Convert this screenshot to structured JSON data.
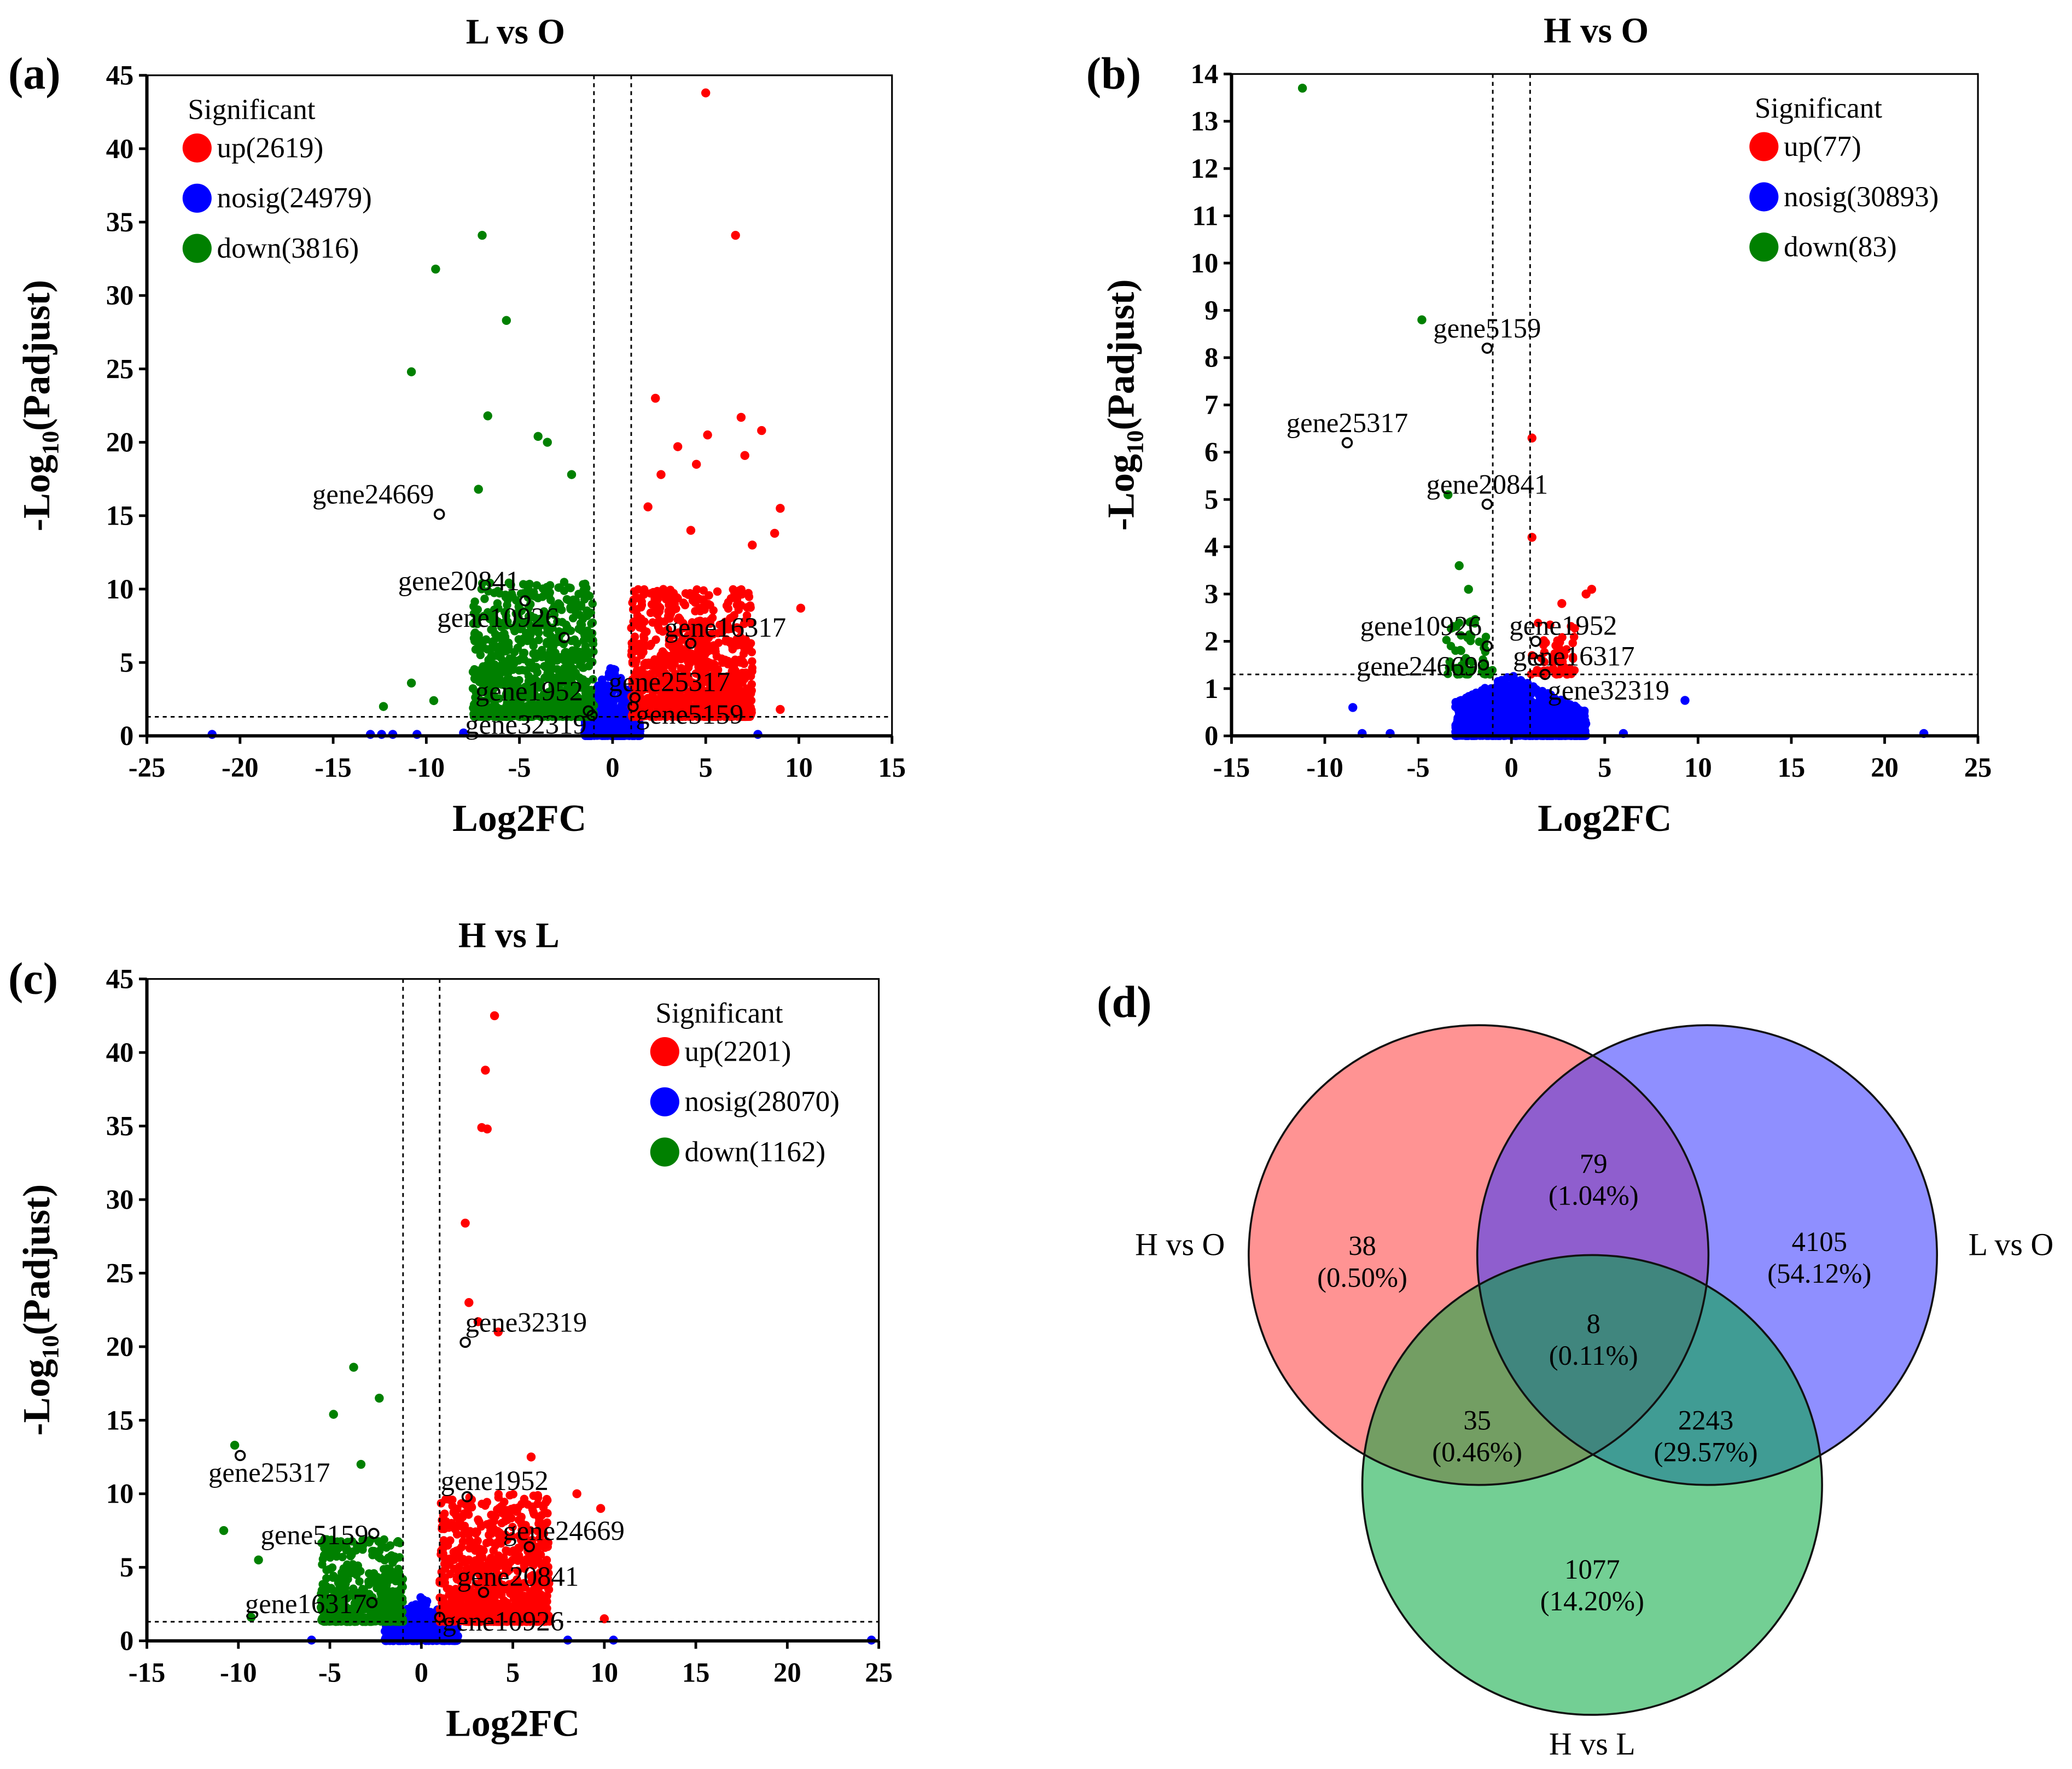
{
  "colors": {
    "up": "#ff0000",
    "nosig": "#0000ff",
    "down": "#008000",
    "venn_a": "#ff3b3b",
    "venn_b": "#3333ff",
    "venn_c": "#00a83c"
  },
  "chart_data": [
    {
      "type": "scatter",
      "panel": "(a)",
      "title": "L vs O",
      "xlabel": "Log2FC",
      "ylabel": "-Log10(Padjust)",
      "xlim": [
        -25,
        15
      ],
      "ylim": [
        0,
        45
      ],
      "xticks": [
        -25,
        -20,
        -15,
        -10,
        -5,
        0,
        5,
        10,
        15
      ],
      "yticks": [
        0,
        5,
        10,
        15,
        20,
        25,
        30,
        35,
        40,
        45
      ],
      "fc_threshold": 1,
      "p_threshold": 1.3,
      "legend_title": "Significant",
      "legend_position": "top-left",
      "legend": [
        {
          "key": "up",
          "label": "up(2619)"
        },
        {
          "key": "nosig",
          "label": "nosig(24979)"
        },
        {
          "key": "down",
          "label": "down(3816)"
        }
      ],
      "clouds": {
        "up": {
          "x": [
            1,
            7.5
          ],
          "y": [
            1.3,
            10
          ],
          "n": 900
        },
        "down": {
          "x": [
            -7.5,
            -1
          ],
          "y": [
            1.3,
            10.5
          ],
          "n": 900
        },
        "nosig": {
          "x": [
            -1.5,
            1.5
          ],
          "y": [
            0,
            5
          ],
          "n": 500
        }
      },
      "outliers": [
        [
          "up",
          5,
          43.8
        ],
        [
          "up",
          6.6,
          34.1
        ],
        [
          "up",
          2.3,
          23
        ],
        [
          "up",
          6.9,
          21.7
        ],
        [
          "up",
          8,
          20.8
        ],
        [
          "up",
          5.1,
          20.5
        ],
        [
          "up",
          7.1,
          19.1
        ],
        [
          "up",
          3.5,
          19.7
        ],
        [
          "up",
          4.5,
          18.5
        ],
        [
          "up",
          2.6,
          17.8
        ],
        [
          "up",
          9,
          15.5
        ],
        [
          "up",
          1.9,
          15.6
        ],
        [
          "up",
          4.2,
          14
        ],
        [
          "up",
          8.7,
          13.8
        ],
        [
          "up",
          7.5,
          13
        ],
        [
          "up",
          10.1,
          8.7
        ],
        [
          "up",
          9,
          1.8
        ],
        [
          "down",
          -7,
          34.1
        ],
        [
          "down",
          -9.5,
          31.8
        ],
        [
          "down",
          -5.7,
          28.3
        ],
        [
          "down",
          -10.8,
          24.8
        ],
        [
          "down",
          -6.7,
          21.8
        ],
        [
          "down",
          -4,
          20.4
        ],
        [
          "down",
          -3.5,
          20
        ],
        [
          "down",
          -2.2,
          17.8
        ],
        [
          "down",
          -7.2,
          16.8
        ],
        [
          "down",
          -12.3,
          2
        ],
        [
          "down",
          -10.8,
          3.6
        ],
        [
          "down",
          -9.6,
          2.4
        ],
        [
          "nosig",
          -21.5,
          0.1
        ],
        [
          "nosig",
          -13,
          0.1
        ],
        [
          "nosig",
          -12.4,
          0.1
        ],
        [
          "nosig",
          -11.8,
          0.1
        ],
        [
          "nosig",
          -10.5,
          0.1
        ],
        [
          "nosig",
          -8,
          0.2
        ],
        [
          "nosig",
          7.8,
          0.1
        ]
      ],
      "genes": [
        {
          "name": "gene24669",
          "x": -9.3,
          "y": 15.1,
          "side": "left"
        },
        {
          "name": "gene20841",
          "x": -4.7,
          "y": 9.2,
          "side": "left"
        },
        {
          "name": "gene10926",
          "x": -2.6,
          "y": 6.7,
          "side": "left"
        },
        {
          "name": "gene16317",
          "x": 4.2,
          "y": 6.3,
          "side": "right"
        },
        {
          "name": "gene25317",
          "x": 1.2,
          "y": 2.6,
          "side": "right"
        },
        {
          "name": "gene1952",
          "x": -1.3,
          "y": 1.7,
          "side": "left"
        },
        {
          "name": "gene32319",
          "x": -1.1,
          "y": 1.4,
          "side": "leftlow"
        },
        {
          "name": "gene5159",
          "x": 1.1,
          "y": 2.0,
          "side": "rightlow"
        }
      ]
    },
    {
      "type": "scatter",
      "panel": "(b)",
      "title": "H vs O",
      "xlabel": "Log2FC",
      "ylabel": "-Log10(Padjust)",
      "xlim": [
        -15,
        25
      ],
      "ylim": [
        0,
        14
      ],
      "xticks": [
        -15,
        -10,
        -5,
        0,
        5,
        10,
        15,
        20,
        25
      ],
      "yticks": [
        0,
        1,
        2,
        3,
        4,
        5,
        6,
        7,
        8,
        9,
        10,
        11,
        12,
        13,
        14
      ],
      "fc_threshold": 1,
      "p_threshold": 1.3,
      "legend_title": "Significant",
      "legend_position": "top-right",
      "legend": [
        {
          "key": "up",
          "label": "up(77)"
        },
        {
          "key": "nosig",
          "label": "nosig(30893)"
        },
        {
          "key": "down",
          "label": "down(83)"
        }
      ],
      "clouds": {
        "up": {
          "x": [
            1,
            3.5
          ],
          "y": [
            1.3,
            2.4
          ],
          "n": 60
        },
        "down": {
          "x": [
            -3.5,
            -1
          ],
          "y": [
            1.3,
            2.5
          ],
          "n": 60
        },
        "nosig": {
          "x": [
            -3,
            4
          ],
          "y": [
            0,
            1.3
          ],
          "n": 1400
        }
      },
      "outliers": [
        [
          "down",
          -11.2,
          13.7
        ],
        [
          "down",
          -4.8,
          8.8
        ],
        [
          "down",
          -3.4,
          5.1
        ],
        [
          "down",
          -2.8,
          3.6
        ],
        [
          "down",
          -2.3,
          3.1
        ],
        [
          "up",
          1.1,
          6.3
        ],
        [
          "up",
          1.1,
          4.2
        ],
        [
          "up",
          4.3,
          3.1
        ],
        [
          "up",
          4,
          3
        ],
        [
          "up",
          2.7,
          2.8
        ],
        [
          "nosig",
          22.1,
          0.05
        ],
        [
          "nosig",
          9.3,
          0.75
        ],
        [
          "nosig",
          -8.5,
          0.6
        ],
        [
          "nosig",
          -8,
          0.05
        ],
        [
          "nosig",
          -6.5,
          0.05
        ],
        [
          "nosig",
          6,
          0.05
        ]
      ],
      "genes": [
        {
          "name": "gene5159",
          "x": -1.3,
          "y": 8.2,
          "side": "above"
        },
        {
          "name": "gene25317",
          "x": -8.8,
          "y": 6.2,
          "side": "above"
        },
        {
          "name": "gene20841",
          "x": -1.3,
          "y": 4.9,
          "side": "above"
        },
        {
          "name": "gene1952",
          "x": 1.3,
          "y": 2.0,
          "side": "right"
        },
        {
          "name": "gene10926",
          "x": -1.3,
          "y": 1.9,
          "side": "left"
        },
        {
          "name": "gene16317",
          "x": 1.5,
          "y": 1.6,
          "side": "right"
        },
        {
          "name": "gene24669",
          "x": -1.5,
          "y": 1.5,
          "side": "leftlow"
        },
        {
          "name": "gene32319",
          "x": 1.8,
          "y": 1.3,
          "side": "rightlow"
        }
      ]
    },
    {
      "type": "scatter",
      "panel": "(c)",
      "title": "H vs L",
      "xlabel": "Log2FC",
      "ylabel": "-Log10(Padjust)",
      "xlim": [
        -15,
        25
      ],
      "ylim": [
        0,
        45
      ],
      "xticks": [
        -15,
        -10,
        -5,
        0,
        5,
        10,
        15,
        20,
        25
      ],
      "yticks": [
        0,
        5,
        10,
        15,
        20,
        25,
        30,
        35,
        40,
        45
      ],
      "fc_threshold": 1,
      "p_threshold": 1.3,
      "legend_title": "Significant",
      "legend_position": "top-right",
      "legend": [
        {
          "key": "up",
          "label": "up(2201)"
        },
        {
          "key": "nosig",
          "label": "nosig(28070)"
        },
        {
          "key": "down",
          "label": "down(1162)"
        }
      ],
      "clouds": {
        "up": {
          "x": [
            1,
            7
          ],
          "y": [
            1.3,
            10
          ],
          "n": 800
        },
        "down": {
          "x": [
            -5.5,
            -1
          ],
          "y": [
            1.3,
            7
          ],
          "n": 450
        },
        "nosig": {
          "x": [
            -2,
            2
          ],
          "y": [
            0,
            3
          ],
          "n": 500
        }
      },
      "outliers": [
        [
          "up",
          4,
          42.5
        ],
        [
          "up",
          3.5,
          38.8
        ],
        [
          "up",
          3.6,
          34.8
        ],
        [
          "up",
          3.3,
          34.9
        ],
        [
          "up",
          2.4,
          28.4
        ],
        [
          "up",
          2.6,
          23
        ],
        [
          "up",
          3.1,
          21.7
        ],
        [
          "up",
          4.2,
          21
        ],
        [
          "up",
          6,
          12.5
        ],
        [
          "up",
          8.5,
          10
        ],
        [
          "up",
          9.8,
          9
        ],
        [
          "up",
          10,
          1.5
        ],
        [
          "down",
          -10.2,
          13.3
        ],
        [
          "down",
          -2.3,
          16.5
        ],
        [
          "down",
          -3.7,
          18.6
        ],
        [
          "down",
          -4.8,
          15.4
        ],
        [
          "down",
          -10.8,
          7.5
        ],
        [
          "down",
          -8.9,
          5.5
        ],
        [
          "down",
          -9.3,
          1.6
        ],
        [
          "down",
          -3.3,
          12
        ],
        [
          "nosig",
          24.6,
          0.05
        ],
        [
          "nosig",
          10.5,
          0.05
        ],
        [
          "nosig",
          8,
          0.05
        ],
        [
          "nosig",
          -6,
          0.05
        ]
      ],
      "genes": [
        {
          "name": "gene32319",
          "x": 2.4,
          "y": 20.3,
          "side": "aboveright"
        },
        {
          "name": "gene25317",
          "x": -9.9,
          "y": 12.6,
          "side": "belowc"
        },
        {
          "name": "gene1952",
          "x": 2.5,
          "y": 9.8,
          "side": "right"
        },
        {
          "name": "gene24669",
          "x": 5.9,
          "y": 6.4,
          "side": "right"
        },
        {
          "name": "gene5159",
          "x": -2.6,
          "y": 7.3,
          "side": "leftlow"
        },
        {
          "name": "gene20841",
          "x": 3.4,
          "y": 3.3,
          "side": "right"
        },
        {
          "name": "gene16317",
          "x": -2.7,
          "y": 2.6,
          "side": "leftlow"
        },
        {
          "name": "gene10926",
          "x": 1.0,
          "y": 1.6,
          "side": "rightlow"
        }
      ]
    },
    {
      "type": "venn",
      "panel": "(d)",
      "sets": [
        "H vs O",
        "L vs O",
        "H vs L"
      ],
      "regions": [
        {
          "sets": [
            "H vs O"
          ],
          "count": "38",
          "pct": "(0.50%)"
        },
        {
          "sets": [
            "L vs O"
          ],
          "count": "4105",
          "pct": "(54.12%)"
        },
        {
          "sets": [
            "H vs L"
          ],
          "count": "1077",
          "pct": "(14.20%)"
        },
        {
          "sets": [
            "H vs O",
            "L vs O"
          ],
          "count": "79",
          "pct": "(1.04%)"
        },
        {
          "sets": [
            "H vs O",
            "H vs L"
          ],
          "count": "35",
          "pct": "(0.46%)"
        },
        {
          "sets": [
            "L vs O",
            "H vs L"
          ],
          "count": "2243",
          "pct": "(29.57%)"
        },
        {
          "sets": [
            "H vs O",
            "L vs O",
            "H vs L"
          ],
          "count": "8",
          "pct": "(0.11%)"
        }
      ]
    }
  ]
}
